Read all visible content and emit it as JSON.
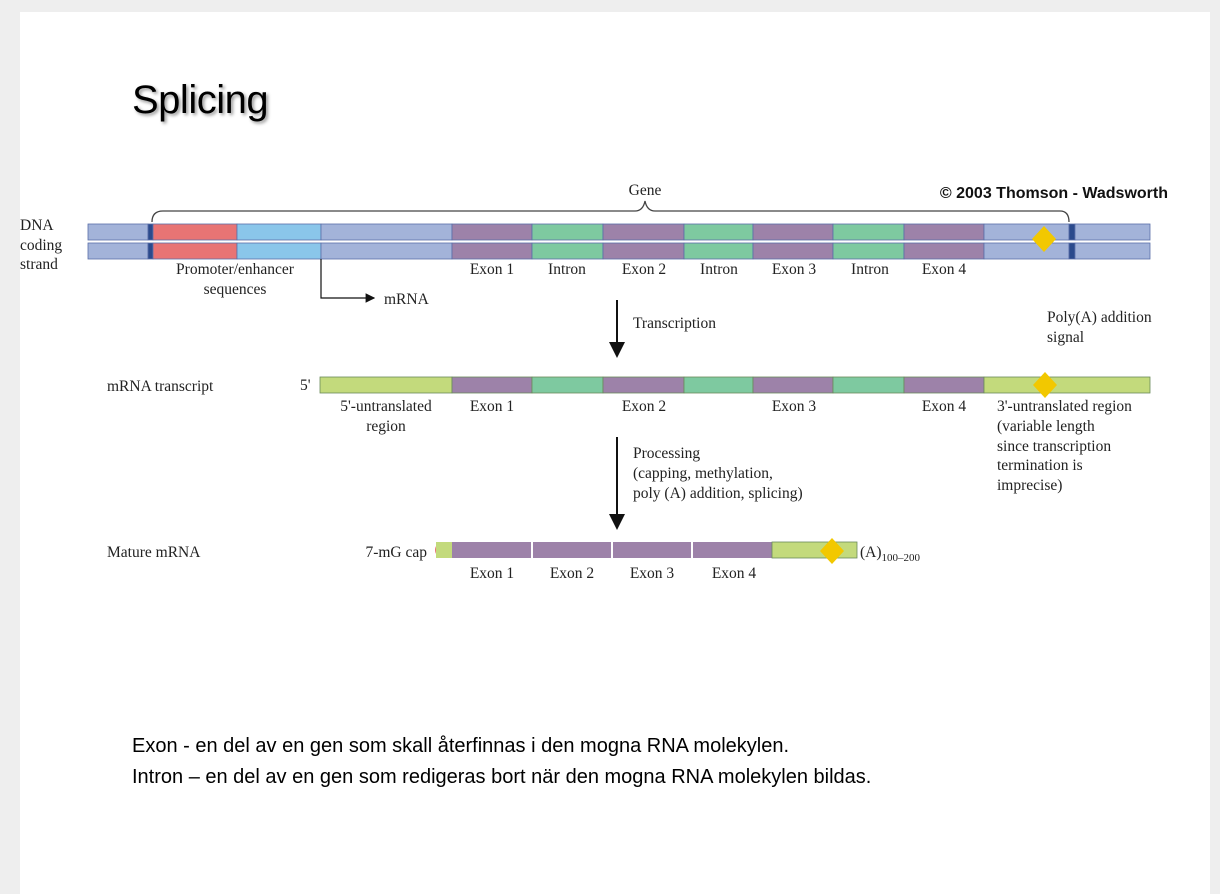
{
  "title": "Splicing",
  "colors": {
    "strand": "#a3b3d9",
    "promoter": "#e87474",
    "enhancer": "#8ac6ea",
    "exon": "#9d82a9",
    "intron": "#7ec9a0",
    "utr": "#c3da7c",
    "boundary": "#2b4a8c",
    "polya_signal": "#f2c800"
  },
  "diagram": {
    "copyright": "© 2003 Thomson - Wadsworth",
    "gene_label": "Gene",
    "dna_label": [
      "DNA",
      "coding",
      "strand"
    ],
    "promoter_label": [
      "Promoter/enhancer",
      "sequences"
    ],
    "mrna_arrow_label": "mRNA",
    "dna_segments": [
      "Exon 1",
      "Intron",
      "Exon 2",
      "Intron",
      "Exon 3",
      "Intron",
      "Exon 4"
    ],
    "transcription_label": "Transcription",
    "polya_label": [
      "Poly(A) addition",
      "signal"
    ],
    "transcript_label": "mRNA transcript",
    "five_prime": "5'",
    "utr5_label": [
      "5'-untranslated",
      "region"
    ],
    "transcript_exons": [
      "Exon 1",
      "Exon 2",
      "Exon 3",
      "Exon 4"
    ],
    "utr3_label": [
      "3'-untranslated region",
      "(variable length",
      "since transcription",
      "termination is",
      "imprecise)"
    ],
    "processing_label": [
      "Processing",
      "(capping, methylation,",
      "poly (A) addition, splicing)"
    ],
    "mature_label": "Mature mRNA",
    "cap_label": "7-mG cap",
    "polya_tail": "(A)",
    "polya_length": "100–200",
    "mature_exons": [
      "Exon 1",
      "Exon 2",
      "Exon 3",
      "Exon 4"
    ]
  },
  "notes": [
    "Exon -  en del av en gen som skall återfinnas i den mogna RNA molekylen.",
    "Intron – en del av en gen som redigeras bort när den mogna RNA molekylen bildas."
  ]
}
